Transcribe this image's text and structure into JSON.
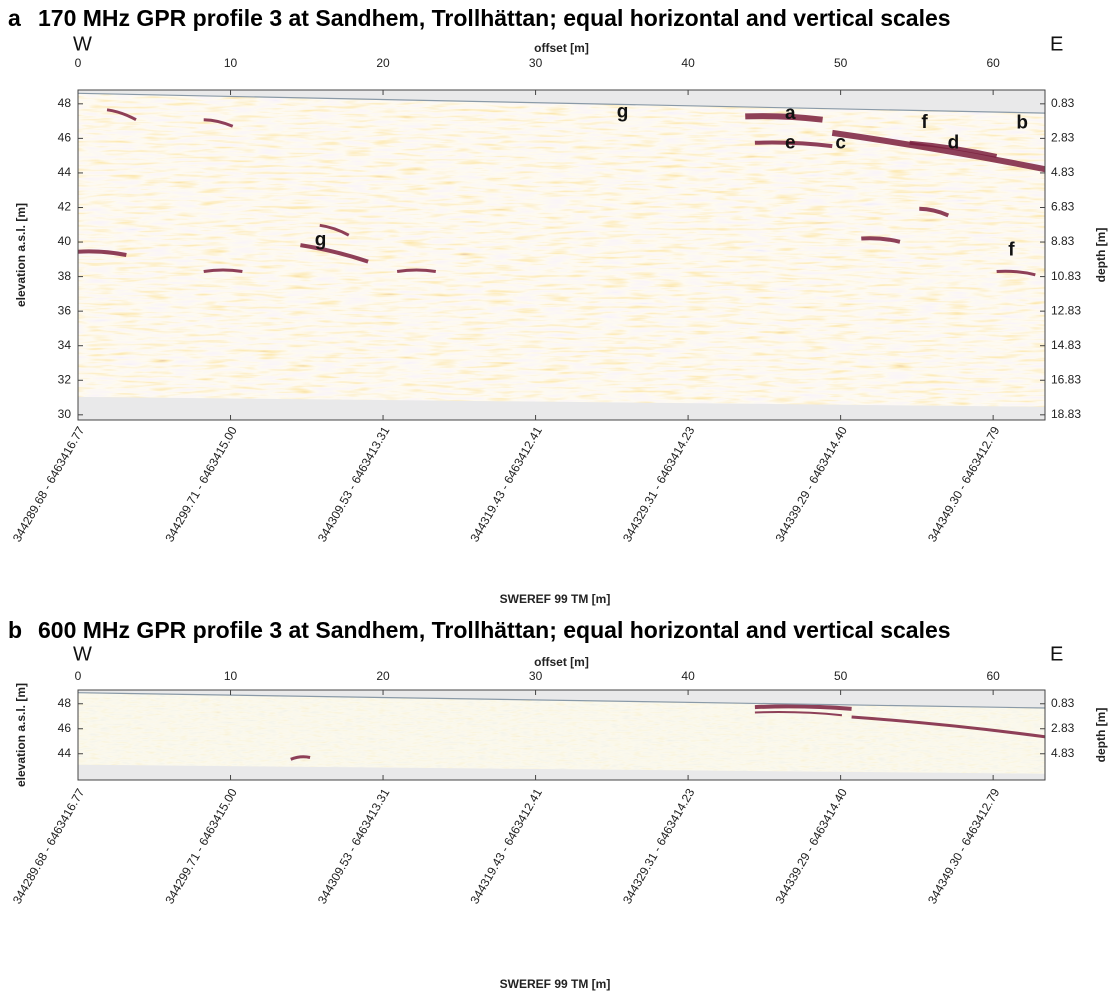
{
  "chart_data": [
    {
      "type": "radargram",
      "panel": "a",
      "title": "170 MHz GPR profile 3 at Sandhem, Trollhättan; equal horizontal and vertical scales",
      "west": "W",
      "east": "E",
      "xlabel": "offset [m]",
      "ylabel": "elevation a.s.l. [m]",
      "y2label": "depth [m]",
      "x2label": "SWEREF 99 TM [m]",
      "xlim": [
        0,
        63.4
      ],
      "xticks": [
        0,
        10,
        20,
        30,
        40,
        50,
        60
      ],
      "ylim": [
        29.7,
        48.8
      ],
      "yticks": [
        30,
        32,
        34,
        36,
        38,
        40,
        42,
        44,
        46,
        48
      ],
      "y2lim": [
        19.13,
        0.03
      ],
      "y2ticks": [
        0.83,
        2.83,
        4.83,
        6.83,
        8.83,
        10.83,
        12.83,
        14.83,
        16.83,
        18.83
      ],
      "x2ticks": [
        {
          "value": 0,
          "label": "344289.68 - 6463416.77"
        },
        {
          "value": 10,
          "label": "344299.71 - 6463415.00"
        },
        {
          "value": 20,
          "label": "344309.53 - 6463413.31"
        },
        {
          "value": 30,
          "label": "344319.43 - 6463412.41"
        },
        {
          "value": 40,
          "label": "344329.31 - 6463414.23"
        },
        {
          "value": 50,
          "label": "344339.29 - 6463414.40"
        },
        {
          "value": 60,
          "label": "344349.30 - 6463412.79"
        }
      ],
      "annotations": [
        {
          "text": "a",
          "x": 46.7,
          "y": 47.4
        },
        {
          "text": "b",
          "x": 61.9,
          "y": 46.85
        },
        {
          "text": "c",
          "x": 50.0,
          "y": 45.7
        },
        {
          "text": "d",
          "x": 57.4,
          "y": 45.7
        },
        {
          "text": "e",
          "x": 46.7,
          "y": 45.7
        },
        {
          "text": "f",
          "x": 55.5,
          "y": 46.9
        },
        {
          "text": "f",
          "x": 61.2,
          "y": 39.5
        },
        {
          "text": "g",
          "x": 35.7,
          "y": 47.5
        },
        {
          "text": "g",
          "x": 15.9,
          "y": 40.1
        }
      ]
    },
    {
      "type": "radargram",
      "panel": "b",
      "title": "600 MHz GPR profile 3 at Sandhem, Trollhättan; equal horizontal and vertical scales",
      "west": "W",
      "east": "E",
      "xlabel": "offset [m]",
      "ylabel": "elevation a.s.l. [m]",
      "y2label": "depth [m]",
      "x2label": "SWEREF 99 TM [m]",
      "xlim": [
        0,
        63.4
      ],
      "xticks": [
        0,
        10,
        20,
        30,
        40,
        50,
        60
      ],
      "ylim": [
        41.9,
        49.1
      ],
      "yticks": [
        44,
        46,
        48
      ],
      "y2lim": [
        6.93,
        -0.27
      ],
      "y2ticks": [
        0.83,
        2.83,
        4.83
      ],
      "x2ticks": [
        {
          "value": 0,
          "label": "344289.68 - 6463416.77"
        },
        {
          "value": 10,
          "label": "344299.71 - 6463415.00"
        },
        {
          "value": 20,
          "label": "344309.53 - 6463413.31"
        },
        {
          "value": 30,
          "label": "344319.43 - 6463412.41"
        },
        {
          "value": 40,
          "label": "344329.31 - 6463414.23"
        },
        {
          "value": 50,
          "label": "344339.29 - 6463414.40"
        },
        {
          "value": 60,
          "label": "344349.30 - 6463412.79"
        }
      ]
    }
  ]
}
